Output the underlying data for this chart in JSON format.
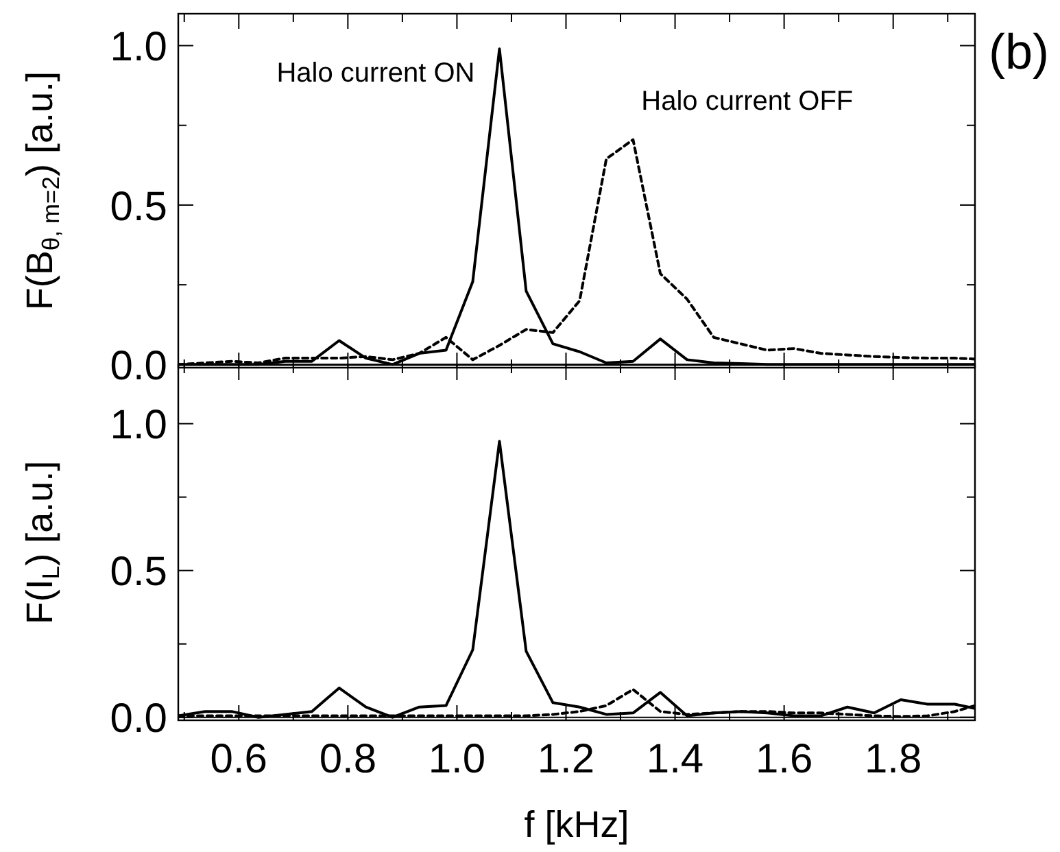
{
  "chart_data": [
    {
      "type": "line",
      "ylabel": "F(B$_{θ, m=2}$) [a.u.]",
      "annotations": [
        "(b)"
      ],
      "tick_labels": "y",
      "x": [
        0.489,
        0.538,
        0.587,
        0.636,
        0.685,
        0.734,
        0.784,
        0.833,
        0.882,
        0.931,
        0.98,
        1.029,
        1.078,
        1.127,
        1.176,
        1.225,
        1.274,
        1.323,
        1.373,
        1.422,
        1.471,
        1.52,
        1.569,
        1.618,
        1.667,
        1.716,
        1.765,
        1.814,
        1.863,
        1.913,
        1.95
      ],
      "xlim": [
        0.489,
        1.95
      ],
      "xticks": [
        {
          "value": 0.5,
          "label": null
        },
        0.6,
        {
          "value": 0.7,
          "label": null
        },
        0.8,
        {
          "value": 0.9,
          "label": null
        },
        1,
        {
          "value": 1.1,
          "label": null
        },
        1.2,
        {
          "value": 1.3,
          "label": null
        },
        1.4,
        {
          "value": 1.5,
          "label": null
        },
        1.6,
        {
          "value": 1.7,
          "label": null
        },
        1.8,
        {
          "value": 1.9,
          "label": null
        }
      ],
      "ylim": [
        -0.01,
        1.1
      ],
      "yticks": [
        {
          "value": 0,
          "label": "0.0"
        },
        {
          "value": 0.25,
          "label": null
        },
        0.5,
        {
          "value": 0.75,
          "label": null
        },
        {
          "value": 1.0,
          "label": "1.0"
        }
      ],
      "series": [
        {
          "name": "Halo current ON",
          "color": "#000000",
          "line_style": "solid",
          "values": [
            0,
            0,
            0,
            0,
            0.01,
            0.01,
            0.075,
            0.02,
            0,
            0.035,
            0.045,
            0.26,
            0.99,
            0.23,
            0.065,
            0.04,
            0.005,
            0.01,
            0.08,
            0.015,
            0.005,
            0.003,
            0,
            0,
            0,
            0,
            0,
            0,
            0,
            0,
            0
          ]
        },
        {
          "name": "Halo current OFF",
          "color": "#000000",
          "line_style": "dashed",
          "values": [
            0,
            0.005,
            0.01,
            0.005,
            0.02,
            0.02,
            0.02,
            0.025,
            0.015,
            0.035,
            0.085,
            0.015,
            0.06,
            0.11,
            0.1,
            0.2,
            0.645,
            0.705,
            0.285,
            0.205,
            0.085,
            0.065,
            0.045,
            0.05,
            0.035,
            0.03,
            0.025,
            0.022,
            0.02,
            0.02,
            0.017
          ]
        }
      ]
    },
    {
      "type": "line",
      "ylabel": "F(I$_{L}$) [a.u.]",
      "xlabel": "f [kHz]",
      "x": [
        0.489,
        0.538,
        0.587,
        0.636,
        0.685,
        0.734,
        0.784,
        0.833,
        0.882,
        0.931,
        0.98,
        1.029,
        1.078,
        1.127,
        1.176,
        1.225,
        1.274,
        1.323,
        1.373,
        1.422,
        1.471,
        1.52,
        1.569,
        1.618,
        1.667,
        1.716,
        1.765,
        1.814,
        1.863,
        1.913,
        1.95
      ],
      "xlim": [
        0.489,
        1.95
      ],
      "xticks": [
        {
          "value": 0.5,
          "label": null
        },
        0.6,
        {
          "value": 0.7,
          "label": null
        },
        0.8,
        {
          "value": 0.9,
          "label": null
        },
        {
          "value": 1.0,
          "label": "1.0"
        },
        {
          "value": 1.1,
          "label": null
        },
        1.2,
        {
          "value": 1.3,
          "label": null
        },
        1.4,
        {
          "value": 1.5,
          "label": null
        },
        1.6,
        {
          "value": 1.7,
          "label": null
        },
        1.8,
        {
          "value": 1.9,
          "label": null
        }
      ],
      "ylim": [
        -0.01,
        1.2
      ],
      "yticks": [
        {
          "value": 0,
          "label": "0.0"
        },
        {
          "value": 0.25,
          "label": null
        },
        0.5,
        {
          "value": 0.75,
          "label": null
        },
        {
          "value": 1.0,
          "label": "1.0"
        }
      ],
      "series": [
        {
          "color": "#000000",
          "line_style": "solid",
          "values": [
            0.005,
            0.02,
            0.02,
            0,
            0.01,
            0.02,
            0.1,
            0.035,
            0,
            0.035,
            0.04,
            0.23,
            0.94,
            0.225,
            0.05,
            0.035,
            0.01,
            0.015,
            0.085,
            0.005,
            0.015,
            0.02,
            0.015,
            0.005,
            0.005,
            0.035,
            0.015,
            0.06,
            0.045,
            0.045,
            0.03
          ]
        },
        {
          "color": "#000000",
          "line_style": "dashed",
          "values": [
            0.005,
            0.005,
            0.005,
            0.005,
            0.005,
            0.005,
            0.005,
            0.005,
            0.005,
            0.005,
            0.005,
            0.005,
            0.005,
            0.005,
            0.01,
            0.02,
            0.04,
            0.095,
            0.02,
            0.01,
            0.015,
            0.02,
            0.02,
            0.015,
            0.015,
            0.01,
            0.005,
            0.003,
            0.005,
            0.02,
            0.04
          ]
        }
      ]
    }
  ]
}
